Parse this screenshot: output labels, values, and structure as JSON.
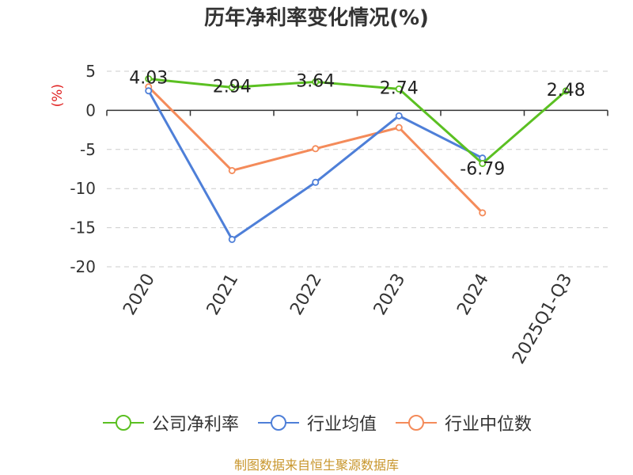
{
  "chart_data": {
    "type": "line",
    "title": "历年净利率变化情况(%)",
    "ylabel": "(%)",
    "xlabel": "",
    "categories": [
      "2020",
      "2021",
      "2022",
      "2023",
      "2024",
      "2025Q1-Q3"
    ],
    "ylim": [
      -20,
      5
    ],
    "yticks": [
      5,
      0,
      -5,
      -10,
      -15,
      -20
    ],
    "grid": true,
    "legend_position": "bottom",
    "series": [
      {
        "name": "公司净利率",
        "color": "#5bc022",
        "values": [
          4.03,
          2.94,
          3.64,
          2.74,
          -6.79,
          2.48
        ],
        "labels": [
          "4.03",
          "2.94",
          "3.64",
          "2.74",
          "-6.79",
          "2.48"
        ]
      },
      {
        "name": "行业均值",
        "color": "#4e7fd8",
        "values": [
          2.5,
          -16.5,
          -9.2,
          -0.7,
          -6.1,
          null
        ]
      },
      {
        "name": "行业中位数",
        "color": "#f48b5a",
        "values": [
          3.0,
          -7.7,
          -4.9,
          -2.2,
          -13.1,
          null
        ]
      }
    ]
  },
  "legend": [
    "公司净利率",
    "行业均值",
    "行业中位数"
  ],
  "source_note": "制图数据来自恒生聚源数据库"
}
